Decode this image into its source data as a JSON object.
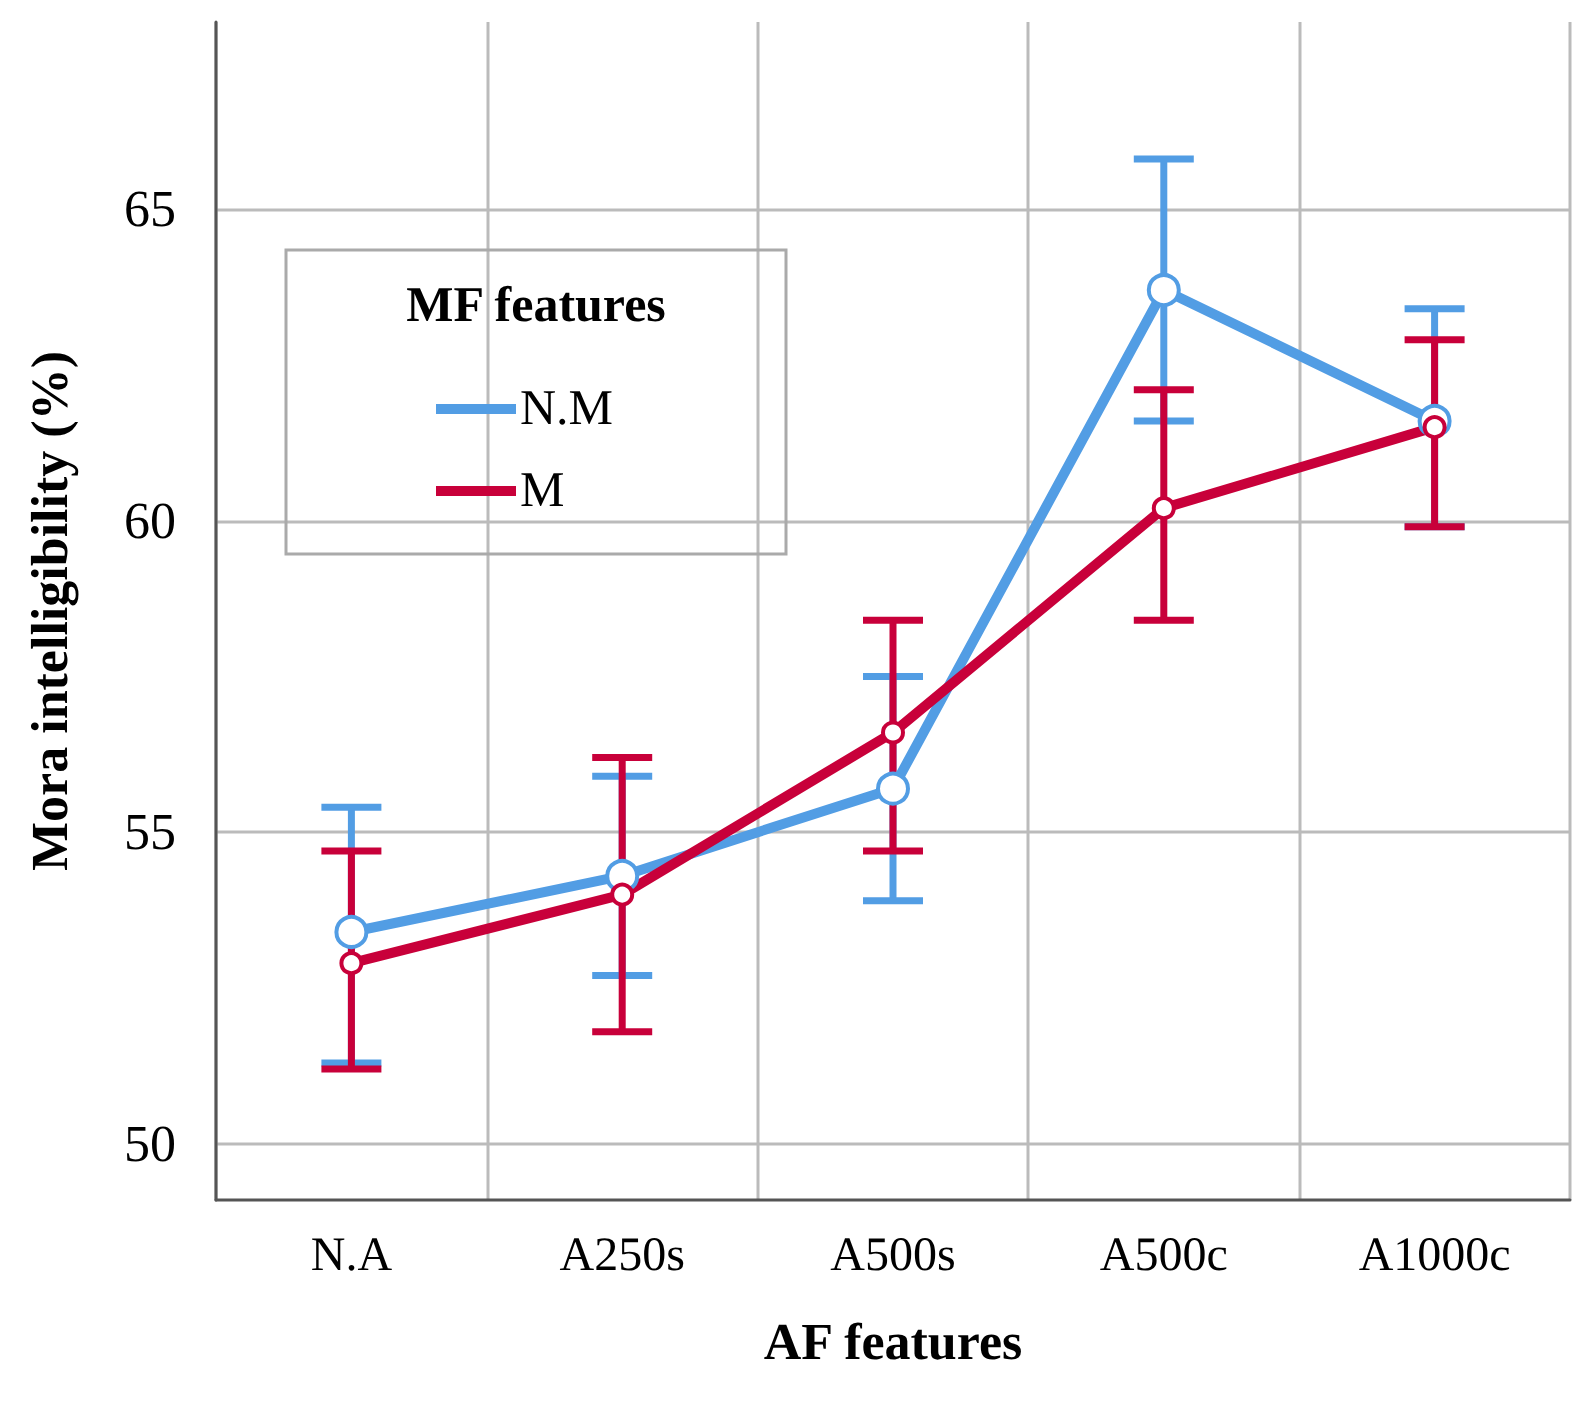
{
  "chart_data": {
    "type": "line",
    "xlabel": "AF features",
    "ylabel": "Mora intelligibility (%)",
    "legend_title": "MF features",
    "categories": [
      "N.A",
      "A250s",
      "A500s",
      "A500c",
      "A1000c"
    ],
    "series": [
      {
        "name": "N.M",
        "color": "#529de4",
        "values": [
          53.4,
          54.3,
          55.7,
          63.7,
          61.6
        ],
        "errors": [
          [
            51.3,
            55.4
          ],
          [
            52.7,
            55.9
          ],
          [
            53.9,
            57.5
          ],
          [
            61.6,
            65.8
          ],
          [
            59.9,
            63.4
          ]
        ]
      },
      {
        "name": "M",
        "color": "#c8003a",
        "values": [
          52.9,
          54.0,
          56.6,
          60.2,
          61.5
        ],
        "errors": [
          [
            51.2,
            54.7
          ],
          [
            51.8,
            56.2
          ],
          [
            54.7,
            58.4
          ],
          [
            58.4,
            62.1
          ],
          [
            59.9,
            62.9
          ]
        ]
      }
    ],
    "ylim": [
      49.1,
      68
    ],
    "yticks": [
      50,
      55,
      60,
      65
    ],
    "grid": true,
    "legend": "top left",
    "marker": "circle",
    "line_style": "solid"
  }
}
